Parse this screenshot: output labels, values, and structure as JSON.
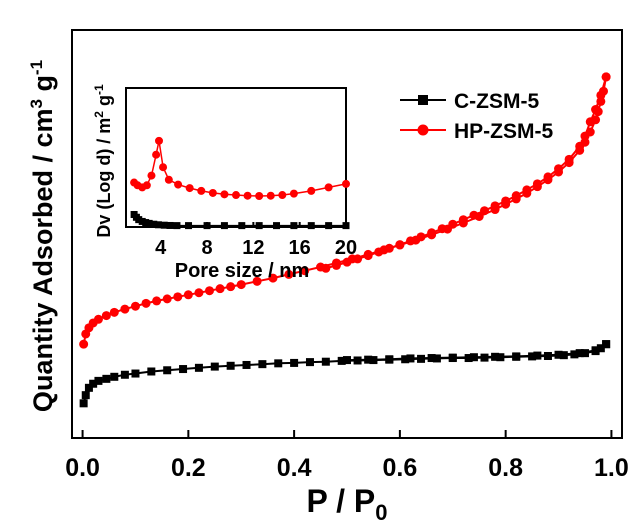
{
  "chart_data": [
    {
      "type": "line",
      "xlabel": "P / P0",
      "xlabel_parts": {
        "main": "P / P",
        "sub": "0"
      },
      "ylabel": "Quantity Adsorbed / cm3 g-1",
      "ylabel_parts": {
        "text": "Quantity Adsorbed / cm",
        "sup1": "3",
        "mid": " g",
        "sup2": "-1"
      },
      "xlim": [
        -0.02,
        1.02
      ],
      "ylim": [
        0,
        100
      ],
      "x_ticks": [
        0.0,
        0.2,
        0.4,
        0.6,
        0.8,
        1.0
      ],
      "x_tick_labels": [
        "0.0",
        "0.2",
        "0.4",
        "0.6",
        "0.8",
        "1.0"
      ],
      "y_tick_labels": false,
      "legend_position": "top-right",
      "series": [
        {
          "name": "C-ZSM-5",
          "color": "#000000",
          "marker": "square",
          "adsorption": {
            "x": [
              0.002,
              0.006,
              0.012,
              0.02,
              0.03,
              0.045,
              0.06,
              0.08,
              0.1,
              0.13,
              0.16,
              0.19,
              0.22,
              0.25,
              0.28,
              0.31,
              0.34,
              0.37,
              0.4,
              0.43,
              0.46,
              0.49,
              0.52,
              0.55,
              0.58,
              0.61,
              0.64,
              0.67,
              0.7,
              0.73,
              0.76,
              0.79,
              0.82,
              0.85,
              0.88,
              0.91,
              0.93,
              0.95,
              0.97,
              0.98,
              0.99
            ],
            "y": [
              8.5,
              10.5,
              12.3,
              13.3,
              14.0,
              14.5,
              15.0,
              15.5,
              15.8,
              16.3,
              16.6,
              16.9,
              17.2,
              17.5,
              17.7,
              17.9,
              18.1,
              18.3,
              18.4,
              18.6,
              18.7,
              18.9,
              19.0,
              19.1,
              19.2,
              19.3,
              19.4,
              19.5,
              19.6,
              19.6,
              19.7,
              19.8,
              19.9,
              20.0,
              20.1,
              20.3,
              20.5,
              20.8,
              21.3,
              22.0,
              23.0
            ]
          },
          "desorption": {
            "x": [
              0.99,
              0.97,
              0.94,
              0.9,
              0.86,
              0.82,
              0.78,
              0.74,
              0.7,
              0.66,
              0.62,
              0.58,
              0.54,
              0.5
            ],
            "y": [
              23.0,
              21.5,
              20.8,
              20.4,
              20.2,
              20.0,
              19.9,
              19.8,
              19.7,
              19.6,
              19.5,
              19.3,
              19.2,
              19.1
            ]
          }
        },
        {
          "name": "HP-ZSM-5",
          "color": "#ff0000",
          "marker": "circle",
          "adsorption": {
            "x": [
              0.002,
              0.006,
              0.012,
              0.02,
              0.03,
              0.045,
              0.06,
              0.08,
              0.1,
              0.12,
              0.14,
              0.16,
              0.18,
              0.2,
              0.22,
              0.24,
              0.26,
              0.28,
              0.3,
              0.33,
              0.36,
              0.39,
              0.42,
              0.45,
              0.48,
              0.51,
              0.54,
              0.57,
              0.6,
              0.63,
              0.66,
              0.69,
              0.72,
              0.75,
              0.78,
              0.8,
              0.82,
              0.84,
              0.86,
              0.88,
              0.9,
              0.92,
              0.94,
              0.95,
              0.96,
              0.97,
              0.975,
              0.98,
              0.985,
              0.99
            ],
            "y": [
              23.0,
              25.5,
              27.0,
              28.2,
              29.1,
              30.0,
              30.8,
              31.6,
              32.3,
              33.0,
              33.6,
              34.1,
              34.6,
              35.1,
              35.6,
              36.1,
              36.6,
              37.1,
              37.6,
              38.4,
              39.2,
              40.1,
              41.0,
              41.9,
              42.9,
              43.9,
              45.0,
              46.1,
              47.3,
              48.5,
              49.8,
              51.2,
              52.7,
              54.3,
              56.0,
              57.3,
              58.6,
              60.0,
              61.6,
              63.3,
              65.2,
              67.5,
              70.5,
              72.5,
              75.0,
              78.0,
              80.0,
              82.5,
              85.0,
              88.5
            ]
          },
          "desorption": {
            "x": [
              0.99,
              0.98,
              0.97,
              0.96,
              0.95,
              0.94,
              0.92,
              0.9,
              0.88,
              0.86,
              0.84,
              0.82,
              0.8,
              0.78,
              0.76,
              0.74,
              0.72,
              0.7,
              0.68,
              0.66,
              0.64,
              0.62,
              0.6,
              0.58,
              0.56,
              0.54,
              0.52,
              0.5,
              0.48,
              0.46
            ],
            "y": [
              88.5,
              84.0,
              80.5,
              77.5,
              74.0,
              71.5,
              68.3,
              66.0,
              64.0,
              62.3,
              60.8,
              59.4,
              58.1,
              56.9,
              55.7,
              54.6,
              53.5,
              52.4,
              51.3,
              50.3,
              49.3,
              48.3,
              47.4,
              46.5,
              45.6,
              44.7,
              43.9,
              43.1,
              42.3,
              41.6
            ]
          }
        }
      ]
    },
    {
      "type": "line",
      "role": "inset",
      "xlabel": "Pore size / nm",
      "ylabel": "Dv (Log d) / m2 g-1",
      "ylabel_parts": {
        "text": "Dv (Log d) / m",
        "sup1": "2",
        "mid": " g",
        "sup2": "-1"
      },
      "xlim": [
        1,
        20
      ],
      "ylim": [
        0,
        100
      ],
      "x_ticks": [
        4,
        8,
        12,
        16,
        20
      ],
      "x_tick_labels": [
        "4",
        "8",
        "12",
        "16",
        "20"
      ],
      "y_tick_labels": false,
      "series": [
        {
          "name": "C-ZSM-5",
          "color": "#000000",
          "marker": "square",
          "x": [
            1.7,
            1.9,
            2.1,
            2.4,
            2.7,
            3.0,
            3.4,
            3.8,
            4.3,
            4.8,
            5.4,
            6.4,
            8.0,
            9.5,
            11.0,
            12.5,
            14.0,
            15.5,
            17.0,
            18.5,
            20.0
          ],
          "y": [
            9.0,
            7.0,
            5.3,
            4.0,
            3.2,
            2.6,
            2.0,
            1.6,
            1.3,
            1.1,
            1.0,
            1.0,
            1.0,
            1.0,
            1.0,
            1.0,
            1.0,
            1.0,
            1.0,
            1.0,
            1.0
          ]
        },
        {
          "name": "HP-ZSM-5",
          "color": "#ff0000",
          "marker": "circle",
          "x": [
            1.7,
            2.0,
            2.4,
            2.8,
            3.2,
            3.6,
            3.85,
            4.2,
            4.7,
            5.5,
            6.5,
            7.5,
            8.5,
            9.5,
            10.5,
            11.5,
            12.5,
            13.5,
            14.5,
            15.5,
            17.0,
            18.5,
            20.0
          ],
          "y": [
            32.0,
            30.0,
            28.5,
            30.0,
            37.0,
            52.0,
            62.0,
            43.0,
            34.0,
            30.5,
            28.0,
            26.0,
            24.5,
            23.5,
            23.0,
            22.5,
            22.3,
            22.5,
            23.0,
            24.0,
            26.0,
            28.5,
            31.0
          ]
        }
      ]
    }
  ]
}
